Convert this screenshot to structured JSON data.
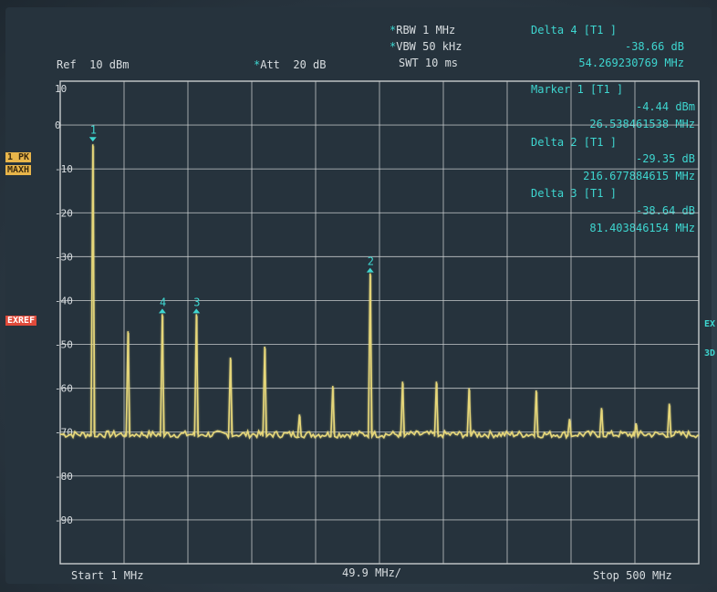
{
  "header": {
    "rbw": "RBW 1 MHz",
    "vbw": "VBW 50 kHz",
    "swt": "SWT 10 ms",
    "ref": "Ref  10 dBm",
    "att": "Att  20 dB"
  },
  "side_labels": {
    "trace_mode_1": "1 PK",
    "trace_mode_2": "MAXH",
    "exref": "EXREF",
    "right_ex": "EX",
    "right_3d": "3D"
  },
  "marker_readouts": [
    {
      "title": "Delta 4 [T1 ]",
      "level": "-38.66 dB",
      "freq": "54.269230769 MHz"
    },
    {
      "title": "Marker 1 [T1 ]",
      "level": "-4.44 dBm",
      "freq": "26.538461538 MHz"
    },
    {
      "title": "Delta 2 [T1 ]",
      "level": "-29.35 dB",
      "freq": "216.677884615 MHz"
    },
    {
      "title": "Delta 3 [T1 ]",
      "level": "-38.64 dB",
      "freq": "81.403846154 MHz"
    }
  ],
  "footer": {
    "start": "Start 1 MHz",
    "span": "49.9 MHz/",
    "stop": "Stop 500 MHz"
  },
  "chart_data": {
    "type": "line",
    "x_unit": "MHz",
    "y_unit": "dBm",
    "xlim": [
      1,
      500
    ],
    "ylim": [
      -100,
      10
    ],
    "y_tick_labels": [
      "10",
      "0",
      "-10",
      "-20",
      "-30",
      "-40",
      "-50",
      "-60",
      "-70",
      "-80",
      "-90"
    ],
    "y_tick_values": [
      10,
      0,
      -10,
      -20,
      -30,
      -40,
      -50,
      -60,
      -70,
      -80,
      -90
    ],
    "grid": true,
    "noise_floor_dbm": -70.5,
    "peaks": [
      {
        "freq": 26.5,
        "level": -4.4
      },
      {
        "freq": 54,
        "level": -47
      },
      {
        "freq": 80.8,
        "level": -43.1
      },
      {
        "freq": 107.4,
        "level": -43.1
      },
      {
        "freq": 134,
        "level": -53
      },
      {
        "freq": 160.8,
        "level": -50.5
      },
      {
        "freq": 188,
        "level": -66
      },
      {
        "freq": 214,
        "level": -59.5
      },
      {
        "freq": 243.2,
        "level": -33.8
      },
      {
        "freq": 268.5,
        "level": -58.5
      },
      {
        "freq": 295,
        "level": -58.5
      },
      {
        "freq": 320.5,
        "level": -60
      },
      {
        "freq": 373,
        "level": -60.5
      },
      {
        "freq": 399,
        "level": -67
      },
      {
        "freq": 424,
        "level": -64.5
      },
      {
        "freq": 451,
        "level": -68
      },
      {
        "freq": 477,
        "level": -63.5
      }
    ],
    "markers": [
      {
        "label": "1",
        "freq": 26.5,
        "level": -4.4,
        "direction": "down"
      },
      {
        "label": "2",
        "freq": 243.2,
        "level": -33.8,
        "direction": "up"
      },
      {
        "label": "3",
        "freq": 107.4,
        "level": -43.1,
        "direction": "up"
      },
      {
        "label": "4",
        "freq": 80.8,
        "level": -43.1,
        "direction": "up"
      }
    ],
    "colors": {
      "trace": "#e6d77a",
      "marker": "#3ed6d0",
      "grid": "#c8ccce"
    }
  }
}
